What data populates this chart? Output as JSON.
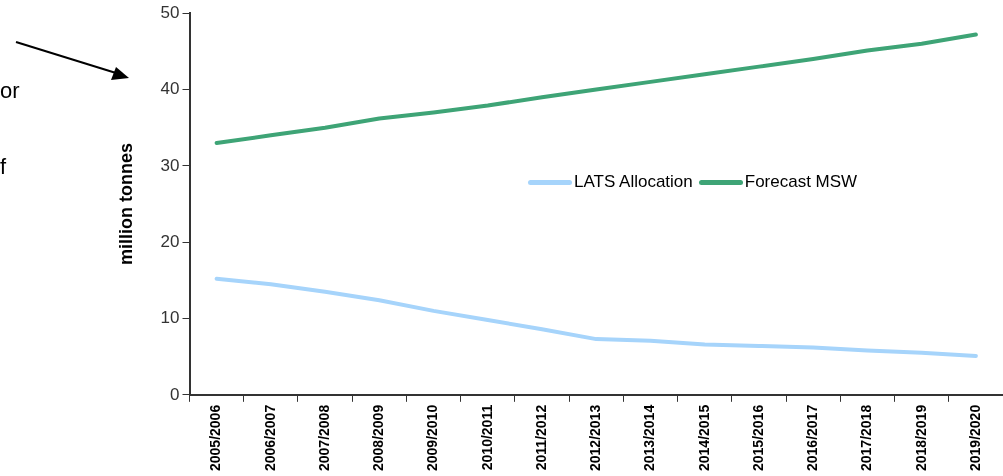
{
  "chart_data": {
    "type": "line",
    "ylabel": "million tonnes",
    "categories": [
      "2005/2006",
      "2006/2007",
      "2007/2008",
      "2008/2009",
      "2009/2010",
      "2010/2011",
      "2011/2012",
      "2012/2013",
      "2013/2014",
      "2014/2015",
      "2015/2016",
      "2016/2017",
      "2017/2018",
      "2018/2019",
      "2019/2020"
    ],
    "series": [
      {
        "name": "LATS Allocation",
        "color": "#a6d4fb",
        "values": [
          15.2,
          14.5,
          13.5,
          12.4,
          11,
          9.8,
          8.6,
          7.3,
          7.1,
          6.6,
          6.4,
          6.2,
          5.8,
          5.5,
          5.1
        ]
      },
      {
        "name": "Forecast MSW",
        "color": "#3ea476",
        "values": [
          33,
          34,
          35,
          36.2,
          37,
          37.9,
          39,
          40,
          41,
          42,
          43,
          44,
          45.1,
          46,
          47.2
        ]
      }
    ],
    "ylim": [
      0,
      50
    ],
    "yticks": [
      0,
      10,
      20,
      30,
      40,
      50
    ],
    "grid": false,
    "legend": "right",
    "marker": "none",
    "line_style": "solid",
    "annotations": [
      "or",
      "f"
    ]
  }
}
